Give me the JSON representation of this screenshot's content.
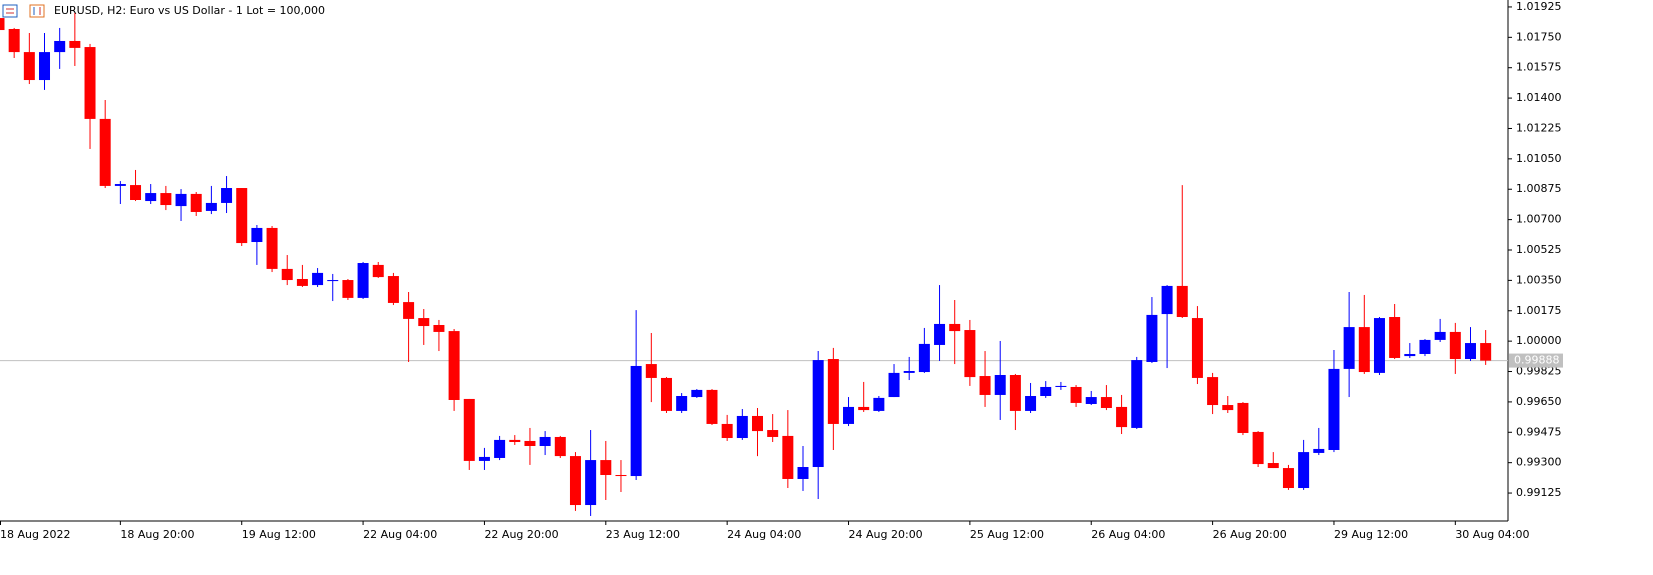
{
  "chart_data": {
    "type": "candlestick",
    "title": "EURUSD, H2:  Euro vs US Dollar - 1 Lot = 100,000",
    "categories": [
      "18 Aug 2022",
      null,
      null,
      null,
      null,
      null,
      null,
      null,
      "18 Aug 20:00",
      null,
      null,
      null,
      null,
      null,
      null,
      null,
      "19 Aug 12:00",
      null,
      null,
      null,
      null,
      null,
      null,
      null,
      "22 Aug 04:00",
      null,
      null,
      null,
      null,
      null,
      null,
      null,
      "22 Aug 20:00",
      null,
      null,
      null,
      null,
      null,
      null,
      null,
      "23 Aug 12:00",
      null,
      null,
      null,
      null,
      null,
      null,
      null,
      "24 Aug 04:00",
      null,
      null,
      null,
      null,
      null,
      null,
      null,
      "24 Aug 20:00",
      null,
      null,
      null,
      null,
      null,
      null,
      null,
      "25 Aug 12:00",
      null,
      null,
      null,
      null,
      null,
      null,
      null,
      "26 Aug 04:00",
      null,
      null,
      null,
      null,
      null,
      null,
      null,
      "26 Aug 20:00",
      null,
      null,
      null,
      null,
      null,
      null,
      null,
      "29 Aug 12:00",
      null,
      null,
      null,
      null,
      null,
      null,
      null,
      "30 Aug 04:00",
      null,
      null
    ],
    "open": [
      1.01861,
      1.01798,
      1.01665,
      1.01504,
      1.01665,
      1.01729,
      1.01694,
      1.0128,
      1.00894,
      1.00899,
      1.00807,
      1.00853,
      1.00778,
      1.00848,
      1.0075,
      1.00796,
      1.00882,
      1.00571,
      1.00652,
      1.00416,
      1.00358,
      1.00323,
      1.00346,
      1.00352,
      1.00249,
      1.00439,
      1.00375,
      1.00225,
      1.00133,
      1.00093,
      1.00058,
      0.99667,
      0.9931,
      0.99327,
      0.99431,
      0.99425,
      0.99396,
      0.99448,
      0.99338,
      0.99056,
      0.99315,
      0.99229,
      0.99223,
      0.99868,
      0.99788,
      0.99598,
      0.99678,
      0.99719,
      0.99523,
      0.99442,
      0.99569,
      0.99488,
      0.99454,
      0.99206,
      0.99275,
      0.99897,
      0.99523,
      0.99621,
      0.99598,
      0.99678,
      0.99817,
      0.99822,
      0.99978,
      1.00099,
      1.00064,
      0.99799,
      0.9969,
      0.99805,
      0.99598,
      0.99684,
      0.99736,
      0.99736,
      0.99638,
      0.99678,
      0.99621,
      0.995,
      0.9988,
      1.00156,
      1.00318,
      1.00133,
      0.99793,
      0.99632,
      0.99644,
      0.99477,
      0.99298,
      0.99269,
      0.99154,
      0.99356,
      0.99373,
      0.9984,
      1.00081,
      0.99817,
      1.00139,
      0.99914,
      0.99926,
      1.00007,
      1.00053,
      0.99897,
      0.99989
    ],
    "high": [
      1.01936,
      1.01804,
      1.01775,
      1.01775,
      1.01804,
      1.0189,
      1.01712,
      1.01389,
      1.00922,
      1.00986,
      1.00905,
      1.00894,
      1.00876,
      1.00859,
      1.00894,
      1.00951,
      1.00882,
      1.00669,
      1.00663,
      1.00496,
      1.00439,
      1.00421,
      1.00387,
      1.00358,
      1.00456,
      1.00456,
      1.00393,
      1.00283,
      1.00185,
      1.00122,
      1.0007,
      0.99667,
      0.99385,
      0.99454,
      0.99459,
      0.995,
      0.99482,
      0.99454,
      0.99361,
      0.99488,
      0.99425,
      0.99315,
      1.00179,
      1.00047,
      0.99793,
      0.99701,
      0.99724,
      0.99724,
      0.99575,
      0.99609,
      0.99615,
      0.9958,
      0.99603,
      0.99396,
      0.99943,
      0.99961,
      0.99678,
      0.99765,
      0.99684,
      0.99868,
      0.99909,
      1.00076,
      1.00323,
      1.00237,
      1.00122,
      0.99943,
      1.00001,
      0.99811,
      0.99759,
      0.9977,
      0.99765,
      0.99747,
      0.99713,
      0.99747,
      0.9969,
      0.99909,
      1.00254,
      1.00323,
      1.00899,
      1.00202,
      0.99817,
      0.99684,
      0.99649,
      0.99482,
      0.99361,
      0.99287,
      0.99431,
      0.995,
      0.99949,
      1.00283,
      1.00266,
      1.00139,
      1.00214,
      0.99989,
      1.00012,
      1.00128,
      1.00105,
      1.00081,
      1.00064
    ],
    "low": [
      1.01781,
      1.01631,
      1.01481,
      1.01447,
      1.01568,
      1.01585,
      1.01107,
      1.00882,
      1.0079,
      1.00807,
      1.0079,
      1.00755,
      1.00692,
      1.00721,
      1.00732,
      1.00738,
      1.00548,
      1.00439,
      1.00398,
      1.00323,
      1.00312,
      1.00312,
      1.00231,
      1.00237,
      1.00243,
      1.00364,
      1.00208,
      0.9988,
      0.99978,
      0.99943,
      0.99598,
      0.99258,
      0.99258,
      0.99315,
      0.99402,
      0.99287,
      0.99344,
      0.99327,
      0.99022,
      0.98993,
      0.99085,
      0.99131,
      0.992,
      0.99649,
      0.99586,
      0.99586,
      0.99673,
      0.99517,
      0.99425,
      0.99431,
      0.99338,
      0.99419,
      0.99154,
      0.99137,
      0.99091,
      0.99373,
      0.99511,
      0.99592,
      0.99592,
      0.99678,
      0.99776,
      0.99817,
      0.99886,
      0.99868,
      0.99742,
      0.99621,
      0.99546,
      0.99488,
      0.99586,
      0.99673,
      0.99719,
      0.99621,
      0.99632,
      0.99603,
      0.99465,
      0.99494,
      0.99874,
      0.99845,
      1.00133,
      0.99753,
      0.9958,
      0.99586,
      0.99459,
      0.99275,
      0.99269,
      0.99143,
      0.99143,
      0.99344,
      0.99361,
      0.99678,
      0.99811,
      0.99805,
      0.99897,
      0.99903,
      0.99914,
      0.99995,
      0.99811,
      0.99886,
      0.99863
    ],
    "close": [
      1.01792,
      1.01665,
      1.01504,
      1.01665,
      1.01729,
      1.01689,
      1.0128,
      1.00894,
      1.00905,
      1.00813,
      1.00853,
      1.00784,
      1.00848,
      1.00744,
      1.00796,
      1.00882,
      1.00565,
      1.00652,
      1.00416,
      1.00352,
      1.00318,
      1.00393,
      1.00352,
      1.00249,
      1.0045,
      1.00369,
      1.0022,
      1.00128,
      1.00087,
      1.00053,
      0.99661,
      0.9931,
      0.99333,
      0.99431,
      0.99419,
      0.99396,
      0.99448,
      0.99338,
      0.99056,
      0.99315,
      0.99229,
      0.99223,
      0.99857,
      0.99788,
      0.99598,
      0.99684,
      0.99719,
      0.99523,
      0.99442,
      0.99569,
      0.99482,
      0.99448,
      0.99206,
      0.99275,
      0.99891,
      0.99523,
      0.99621,
      0.99603,
      0.99673,
      0.99817,
      0.99828,
      0.99984,
      1.00099,
      1.00058,
      0.99793,
      0.9969,
      0.99805,
      0.99598,
      0.99684,
      0.99736,
      0.99742,
      0.99644,
      0.99678,
      0.99615,
      0.99505,
      0.99891,
      1.00151,
      1.00318,
      1.00139,
      0.99788,
      0.99632,
      0.99603,
      0.99471,
      0.99292,
      0.99269,
      0.99154,
      0.99361,
      0.99379,
      0.9984,
      1.00081,
      0.99822,
      1.00133,
      0.99903,
      0.99926,
      1.00007,
      1.00053,
      0.99897,
      0.99989,
      0.99888
    ],
    "up_color": "#0000ff",
    "down_color": "#ff0000",
    "ylim": [
      0.98964,
      1.01965
    ],
    "yticks": [
      1.01925,
      {
        "value": 1.0175,
        "label": "1.01750"
      },
      1.01575,
      {
        "value": 1.014,
        "label": "1.01400"
      },
      1.01225,
      {
        "value": 1.0105,
        "label": "1.01050"
      },
      1.00875,
      {
        "value": 1.007,
        "label": "1.00700"
      },
      1.00525,
      {
        "value": 1.0035,
        "label": "1.00350"
      },
      1.00175,
      {
        "value": 1.0,
        "label": "1.00000"
      },
      0.99825,
      {
        "value": 0.9965,
        "label": "0.99650"
      },
      0.99475,
      {
        "value": 0.993,
        "label": "0.99300"
      },
      0.99125
    ],
    "current_price": {
      "value": 0.99888,
      "label": "0.99888"
    }
  }
}
